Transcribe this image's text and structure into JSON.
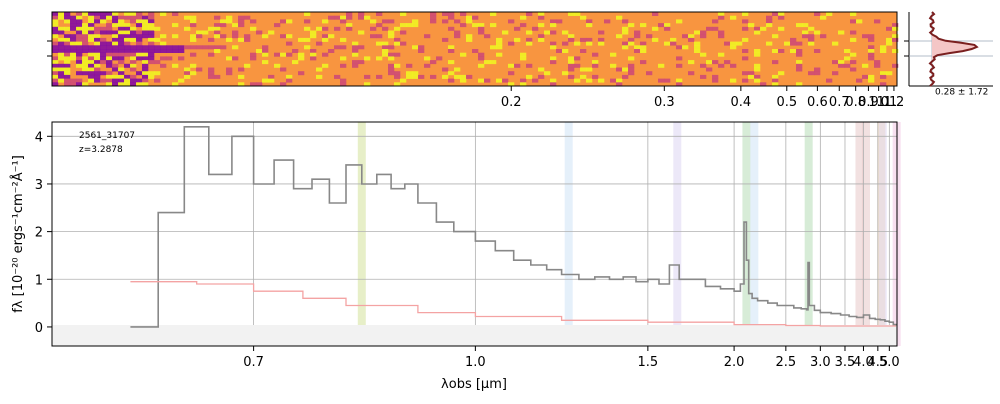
{
  "chart_data": [
    {
      "type": "heatmap",
      "panel": "2d-spectrum",
      "colormap": "plasma",
      "colors": [
        "#0d0887",
        "#7e03a8",
        "#cc4778",
        "#f89540",
        "#f0f921"
      ],
      "x_scale": "reciprocal",
      "x_ticks": [
        0.2,
        0.3,
        0.4,
        0.5,
        0.6,
        0.7,
        0.8,
        0.9,
        1.0,
        1.1,
        1.2
      ],
      "x_tick_labels": [
        "0.2",
        "0.3",
        "0.4",
        "0.5",
        "0.6",
        "0.7",
        "0.8",
        "0.9",
        "1.0",
        "1.1",
        "1.2"
      ],
      "xlim": [
        0.1,
        1.25
      ]
    },
    {
      "type": "line",
      "panel": "profile",
      "annotation": "0.28 ± 1.72",
      "fill_color": "#f4c6c6",
      "line_color": "#7a1f1f"
    },
    {
      "type": "line",
      "panel": "1d-spectrum",
      "id_label": "2561_31707",
      "redshift_label": "z=3.2878",
      "xlabel": "λobs [μm]",
      "ylabel": "fλ [10⁻²⁰ ergs⁻¹cm⁻²Å⁻¹]",
      "xlim": [
        0.55,
        5.4
      ],
      "ylim": [
        -0.4,
        4.3
      ],
      "x_scale": "reciprocal",
      "x_ticks": [
        0.7,
        1.0,
        1.5,
        2.0,
        2.5,
        3.0,
        3.5,
        4.0,
        4.5,
        5.0
      ],
      "x_tick_labels": [
        "0.7",
        "1.0",
        "1.5",
        "2.0",
        "2.5",
        "3.0",
        "3.5",
        "4.0",
        "4.5",
        "5.0"
      ],
      "y_ticks": [
        0,
        1,
        2,
        3,
        4
      ],
      "y_tick_labels": [
        "0",
        "1",
        "2",
        "3",
        "4"
      ],
      "grid": true,
      "series": [
        {
          "color": "#888888",
          "x": [
            0.6,
            0.62,
            0.64,
            0.66,
            0.68,
            0.7,
            0.72,
            0.74,
            0.76,
            0.78,
            0.8,
            0.82,
            0.84,
            0.86,
            0.88,
            0.9,
            0.93,
            0.96,
            1.0,
            1.04,
            1.08,
            1.12,
            1.16,
            1.2,
            1.25,
            1.3,
            1.35,
            1.4,
            1.45,
            1.5,
            1.55,
            1.6,
            1.65,
            1.7,
            1.8,
            1.9,
            2.0,
            2.05,
            2.08,
            2.1,
            2.12,
            2.15,
            2.2,
            2.3,
            2.4,
            2.5,
            2.6,
            2.7,
            2.78,
            2.8,
            2.82,
            2.9,
            3.0,
            3.2,
            3.4,
            3.6,
            3.8,
            4.0,
            4.2,
            4.4,
            4.6,
            4.8,
            5.0,
            5.2,
            5.35
          ],
          "y": [
            0.0,
            2.4,
            4.2,
            3.2,
            4.0,
            3.0,
            3.5,
            2.9,
            3.1,
            2.6,
            3.4,
            3.0,
            3.2,
            2.9,
            3.0,
            2.6,
            2.2,
            2.0,
            1.8,
            1.6,
            1.4,
            1.3,
            1.2,
            1.1,
            1.0,
            1.05,
            1.0,
            1.05,
            0.95,
            1.0,
            0.9,
            1.3,
            1.0,
            1.0,
            0.85,
            0.8,
            0.75,
            0.9,
            2.2,
            1.4,
            0.7,
            0.6,
            0.55,
            0.5,
            0.45,
            0.45,
            0.4,
            0.38,
            0.36,
            1.35,
            0.45,
            0.35,
            0.3,
            0.28,
            0.25,
            0.22,
            0.2,
            0.25,
            0.18,
            0.16,
            0.15,
            0.12,
            0.1,
            0.05,
            0.03
          ]
        },
        {
          "color": "#f4a3a3",
          "x": [
            0.6,
            0.65,
            0.7,
            0.75,
            0.8,
            0.9,
            1.0,
            1.2,
            1.5,
            2.0,
            2.5,
            3.0,
            4.0,
            5.0,
            5.35
          ],
          "y": [
            0.95,
            0.9,
            0.75,
            0.6,
            0.45,
            0.3,
            0.22,
            0.14,
            0.1,
            0.05,
            0.03,
            0.02,
            0.02,
            0.02,
            0.02
          ]
        }
      ],
      "bands": [
        {
          "center": 0.82,
          "color": "#d4e29a"
        },
        {
          "center": 1.22,
          "color": "#cfe3f5"
        },
        {
          "center": 1.64,
          "color": "#ddd6f3"
        },
        {
          "center": 2.1,
          "color": "#b6dcb6"
        },
        {
          "center": 2.17,
          "color": "#cfe3f5"
        },
        {
          "center": 2.81,
          "color": "#b6dcb6"
        },
        {
          "center": 3.88,
          "color": "#e8c8c8"
        },
        {
          "center": 4.08,
          "color": "#e8c8c8"
        },
        {
          "center": 4.64,
          "color": "#f5d6a8"
        },
        {
          "center": 4.7,
          "color": "#ddd6f3"
        },
        {
          "center": 5.38,
          "color": "#f3c6e3"
        }
      ]
    }
  ]
}
